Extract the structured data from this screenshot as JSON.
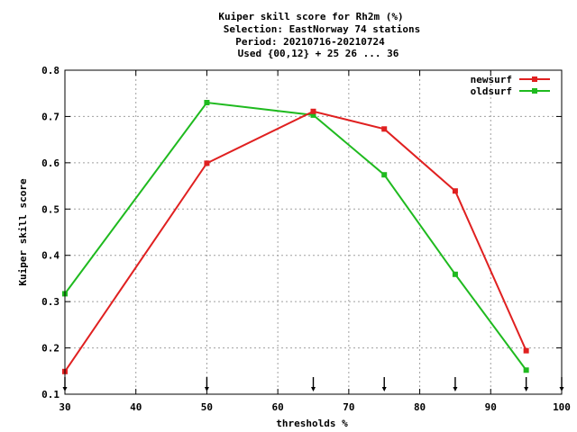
{
  "chart_data": {
    "type": "line",
    "title_lines": [
      "Kuiper skill score  for Rh2m (%)",
      "Selection: EastNorway     74 stations",
      "Period: 20210716-20210724",
      "Used {00,12} + 25 26 ... 36"
    ],
    "xlabel": "thresholds %",
    "ylabel": "Kuiper skill score",
    "xlim": [
      30,
      100
    ],
    "ylim": [
      0.1,
      0.8
    ],
    "xticks": [
      30,
      40,
      50,
      60,
      70,
      80,
      90,
      100
    ],
    "yticks": [
      0.1,
      0.2,
      0.3,
      0.4,
      0.5,
      0.6,
      0.7,
      0.8
    ],
    "grid": true,
    "legend_position": "top-right",
    "threshold_markers": [
      30,
      50,
      65,
      75,
      85,
      95,
      100
    ],
    "series": [
      {
        "name": "newsurf",
        "color": "#e02020",
        "x": [
          30,
          50,
          65,
          75,
          85,
          95
        ],
        "y": [
          0.149,
          0.599,
          0.711,
          0.673,
          0.539,
          0.194
        ]
      },
      {
        "name": "oldsurf",
        "color": "#1fba1f",
        "x": [
          30,
          50,
          65,
          75,
          85,
          95
        ],
        "y": [
          0.317,
          0.73,
          0.703,
          0.574,
          0.359,
          0.152
        ]
      }
    ]
  }
}
